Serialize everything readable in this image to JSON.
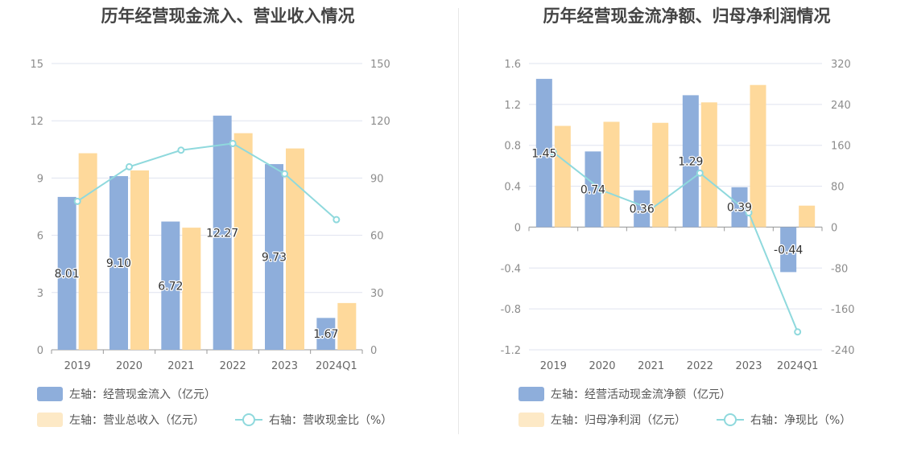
{
  "colors": {
    "bar_primary": "#8eaedb",
    "bar_secondary": "#fed99b",
    "line": "#8fd9dd",
    "grid": "#dfe3ef",
    "axis": "#999999"
  },
  "chart_data": [
    {
      "type": "bar",
      "title": "历年经营现金流入、营业收入情况",
      "categories": [
        "2019",
        "2020",
        "2021",
        "2022",
        "2023",
        "2024Q1"
      ],
      "left_axis": {
        "ticks": [
          "0",
          "3",
          "6",
          "9",
          "12",
          "15"
        ],
        "ylim": [
          0,
          15
        ]
      },
      "right_axis": {
        "ticks": [
          "0",
          "30",
          "60",
          "90",
          "120",
          "150"
        ],
        "ylim": [
          0,
          150
        ]
      },
      "series": [
        {
          "name": "左轴：经营现金流入（亿元）",
          "kind": "bar",
          "axis": "left",
          "values": [
            8.01,
            9.1,
            6.72,
            12.27,
            9.73,
            1.67
          ],
          "labels": [
            "8.01",
            "9.10",
            "6.72",
            "12.27",
            "9.73",
            "1.67"
          ]
        },
        {
          "name": "左轴：营业总收入（亿元）",
          "kind": "bar",
          "axis": "left",
          "values": [
            10.3,
            9.4,
            6.4,
            11.35,
            10.55,
            2.45
          ]
        },
        {
          "name": "右轴：营收现金比（%）",
          "kind": "line",
          "axis": "right",
          "values": [
            77.8,
            95.9,
            104.6,
            108.1,
            92.2,
            68.2
          ]
        }
      ]
    },
    {
      "type": "bar",
      "title": "历年经营现金流净额、归母净利润情况",
      "categories": [
        "2019",
        "2020",
        "2021",
        "2022",
        "2023",
        "2024Q1"
      ],
      "left_axis": {
        "ticks": [
          "-1.2",
          "-0.8",
          "-0.4",
          "0",
          "0.4",
          "0.8",
          "1.2",
          "1.6"
        ],
        "ylim": [
          -1.2,
          1.6
        ]
      },
      "right_axis": {
        "ticks": [
          "-240",
          "-160",
          "-80",
          "0",
          "80",
          "160",
          "240",
          "320"
        ],
        "ylim": [
          -240,
          320
        ]
      },
      "series": [
        {
          "name": "左轴：经营活动现金流净额（亿元）",
          "kind": "bar",
          "axis": "left",
          "values": [
            1.45,
            0.74,
            0.36,
            1.29,
            0.39,
            -0.44
          ],
          "labels": [
            "1.45",
            "0.74",
            "0.36",
            "1.29",
            "0.39",
            "-0.44"
          ]
        },
        {
          "name": "左轴：归母净利润（亿元）",
          "kind": "bar",
          "axis": "left",
          "values": [
            0.99,
            1.03,
            1.02,
            1.22,
            1.39,
            0.21
          ]
        },
        {
          "name": "右轴：净现比（%）",
          "kind": "line",
          "axis": "right",
          "values": [
            146.5,
            71.8,
            35.3,
            105.7,
            28.1,
            -205
          ]
        }
      ]
    }
  ]
}
